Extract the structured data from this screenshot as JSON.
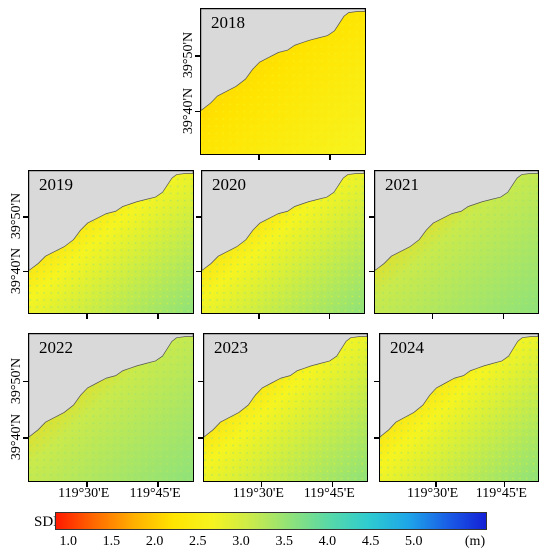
{
  "panels": [
    {
      "year": "2018",
      "mean_sdd": 1.8
    },
    {
      "year": "2019",
      "mean_sdd": 2.5
    },
    {
      "year": "2020",
      "mean_sdd": 2.5
    },
    {
      "year": "2021",
      "mean_sdd": 2.6
    },
    {
      "year": "2022",
      "mean_sdd": 2.7
    },
    {
      "year": "2023",
      "mean_sdd": 2.5
    },
    {
      "year": "2024",
      "mean_sdd": 2.4
    }
  ],
  "axes": {
    "lat_labels": [
      "39°50'N",
      "39°40'N"
    ],
    "lon_labels": [
      "119°30'E",
      "119°45'E"
    ]
  },
  "legend": {
    "title": "SDD",
    "unit": "(m)",
    "range": [
      0.5,
      5.5
    ],
    "ticks": [
      "1.0",
      "1.5",
      "2.0",
      "2.5",
      "3.0",
      "3.5",
      "4.0",
      "4.5",
      "5.0"
    ],
    "colors": [
      "#ff1a00",
      "#ff6a00",
      "#ffb000",
      "#ffe400",
      "#f6f420",
      "#c9ea4c",
      "#8fe27a",
      "#57d9a8",
      "#2ecbd0",
      "#1ea6e8",
      "#1a5fe6",
      "#1420d6"
    ]
  },
  "land_color": "#d9d9d9"
}
